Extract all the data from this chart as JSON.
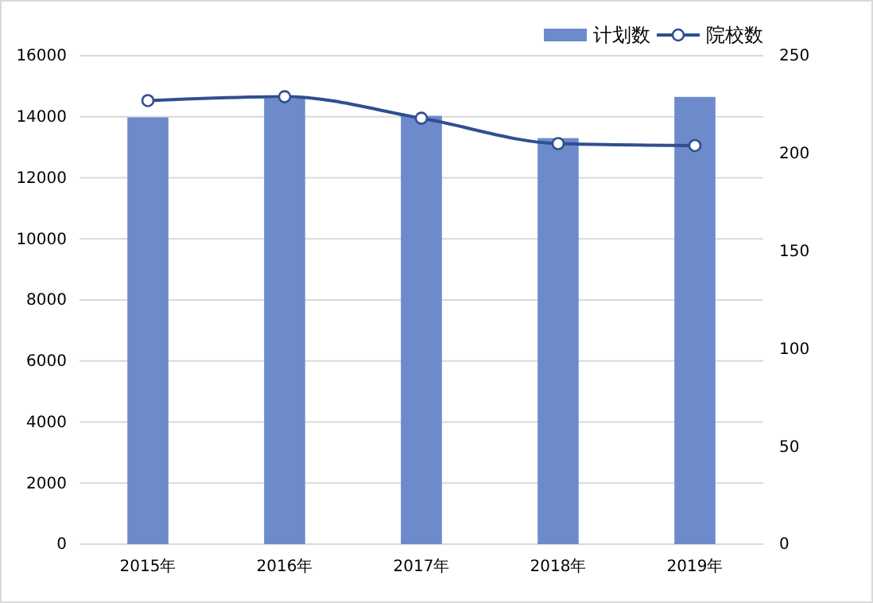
{
  "chart_data": {
    "type": "bar",
    "categories": [
      "2015年",
      "2016年",
      "2017年",
      "2018年",
      "2019年"
    ],
    "series": [
      {
        "name": "计划数",
        "color": "#6d8acb",
        "values": [
          13980,
          14600,
          14030,
          13300,
          14650
        ]
      },
      {
        "name": "院校数",
        "type": "line",
        "axis": "y2",
        "color": "#2f4f8f",
        "marker": "circle",
        "values": [
          227,
          229,
          218,
          205,
          204
        ]
      }
    ],
    "ylim": [
      0,
      16000
    ],
    "yticks": [
      0,
      2000,
      4000,
      6000,
      8000,
      10000,
      12000,
      14000,
      16000
    ],
    "y2lim": [
      0,
      250
    ],
    "y2ticks": [
      0,
      50,
      100,
      150,
      200,
      250
    ],
    "grid": "y",
    "legend": "top right"
  }
}
